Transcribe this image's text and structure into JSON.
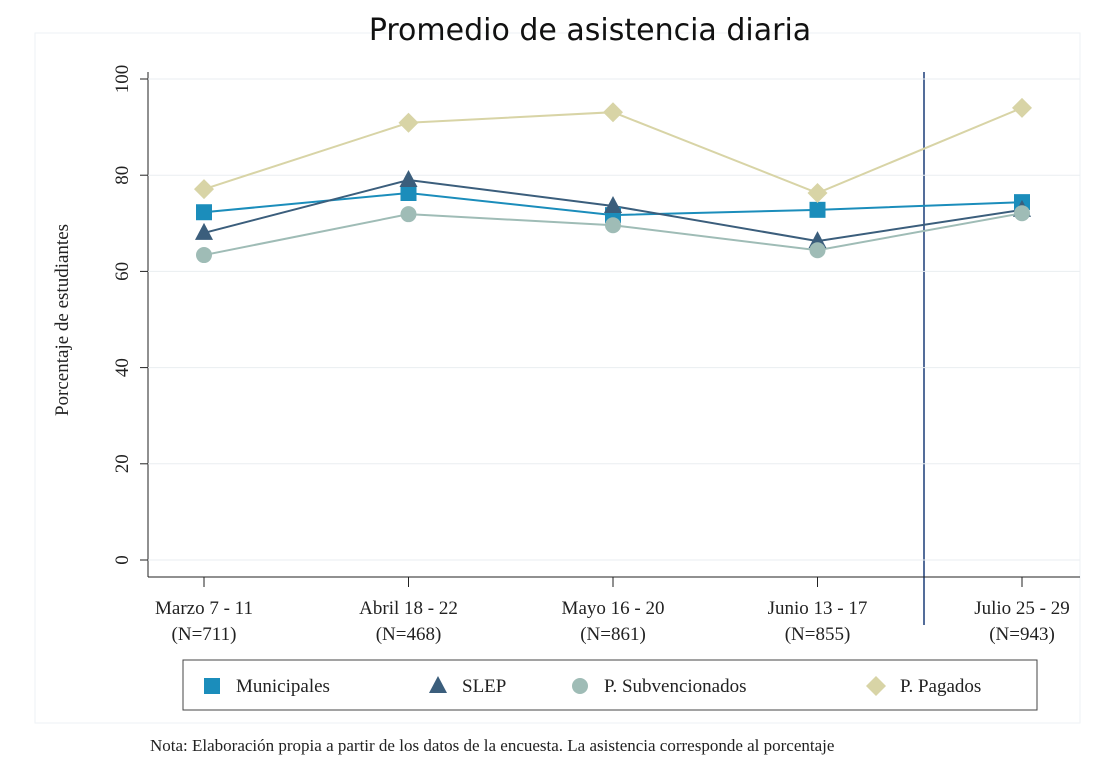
{
  "chart_data": {
    "type": "line",
    "title": "Promedio de asistencia diaria",
    "ylabel": "Porcentaje de estudiantes",
    "categories": [
      [
        "Marzo 7 - 11",
        "(N=711)"
      ],
      [
        "Abril 18 - 22",
        "(N=468)"
      ],
      [
        "Mayo 16 - 20",
        "(N=861)"
      ],
      [
        "Junio 13 - 17",
        "(N=855)"
      ],
      [
        "Julio 25 - 29",
        "(N=943)"
      ]
    ],
    "series": [
      {
        "name": "Municipales",
        "color": "#1b8dbb",
        "marker": "square",
        "values": [
          72.3,
          76.3,
          71.7,
          72.8,
          74.4
        ]
      },
      {
        "name": "SLEP",
        "color": "#3b5e7c",
        "marker": "triangle",
        "values": [
          68,
          79,
          73.6,
          66.3,
          72.8
        ]
      },
      {
        "name": "P. Subvencionados",
        "color": "#9fbcb6",
        "marker": "circle",
        "values": [
          63.4,
          71.9,
          69.6,
          64.4,
          72.1
        ]
      },
      {
        "name": "P. Pagados",
        "color": "#d8d4a6",
        "marker": "diamond",
        "values": [
          77.1,
          90.9,
          93.1,
          76.3,
          94
        ]
      }
    ],
    "ylim": [
      0,
      100
    ],
    "yticks": [
      0,
      20,
      40,
      60,
      80,
      100
    ],
    "grid": true,
    "legend": "bottom",
    "note": "Nota: Elaboración propia a partir de los datos de la encuesta. La asistencia corresponde al porcentaje"
  }
}
